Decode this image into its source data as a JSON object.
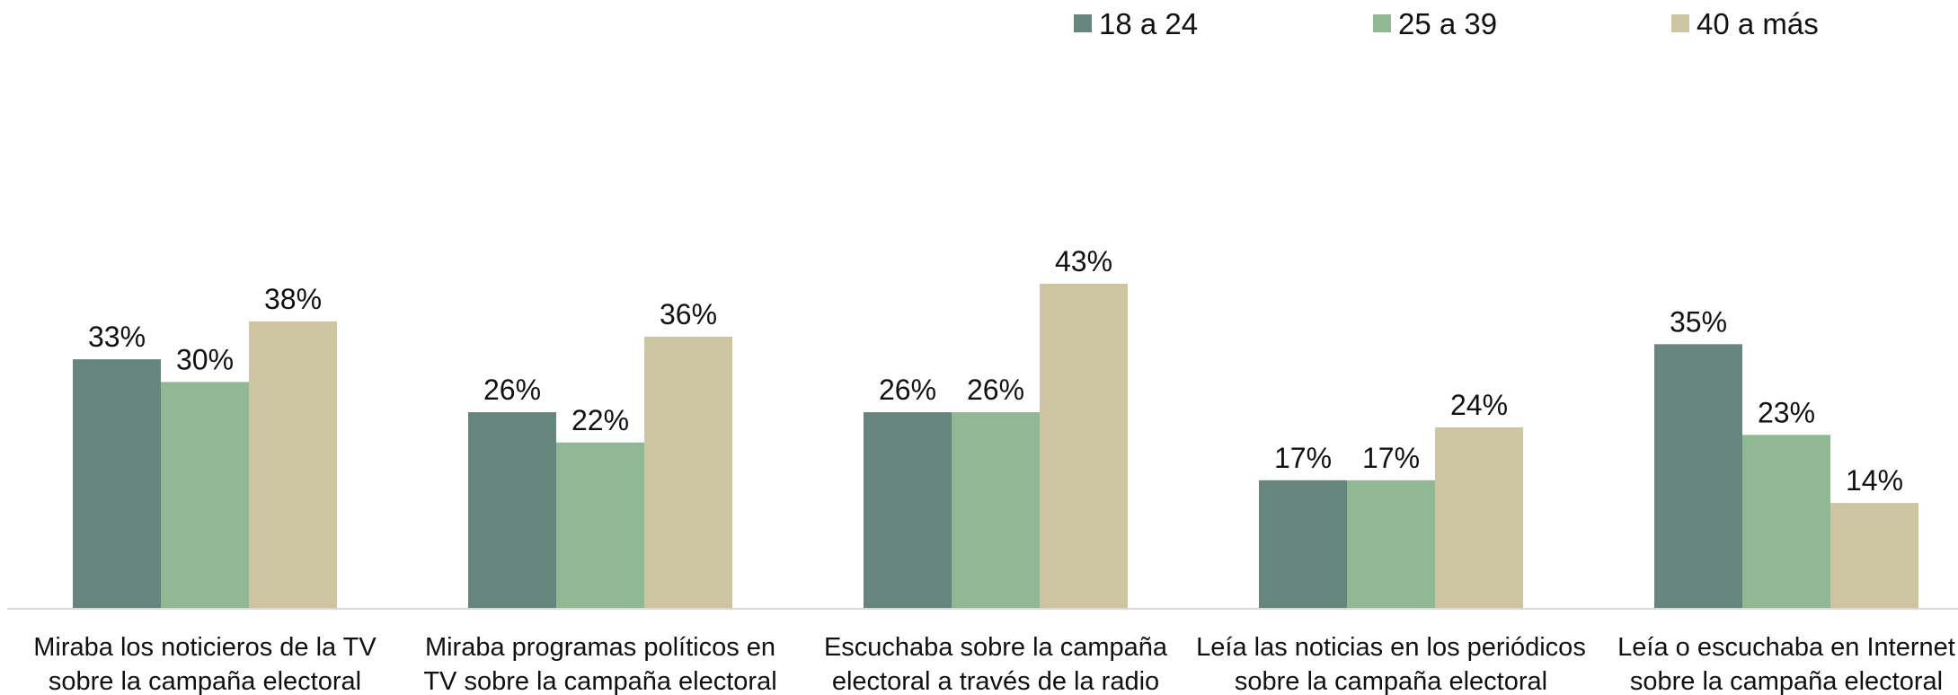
{
  "chart_data": {
    "type": "bar",
    "categories": [
      [
        "Miraba los noticieros de la TV",
        "sobre la campaña electoral"
      ],
      [
        "Miraba programas políticos en",
        "TV sobre la campaña electoral"
      ],
      [
        "Escuchaba sobre la campaña",
        "electoral a través de la radio"
      ],
      [
        "Leía las noticias en los periódicos",
        "sobre la campaña electoral"
      ],
      [
        "Leía o escuchaba en Internet",
        "sobre la campaña electoral"
      ]
    ],
    "series": [
      {
        "name": "18 a 24",
        "color": "#66857c",
        "values": [
          33,
          26,
          26,
          17,
          35
        ],
        "value_labels": [
          "33%",
          "26%",
          "26%",
          "17%",
          "35%"
        ]
      },
      {
        "name": "25 a 39",
        "color": "#8fb893",
        "values": [
          30,
          22,
          26,
          17,
          23
        ],
        "value_labels": [
          "30%",
          "22%",
          "26%",
          "17%",
          "23%"
        ]
      },
      {
        "name": "40 a más",
        "color": "#cdc4a2",
        "values": [
          38,
          36,
          43,
          24,
          14
        ],
        "value_labels": [
          "38%",
          "36%",
          "43%",
          "24%",
          "14%"
        ]
      }
    ],
    "ylim": [
      0,
      50
    ],
    "legend": "top"
  }
}
